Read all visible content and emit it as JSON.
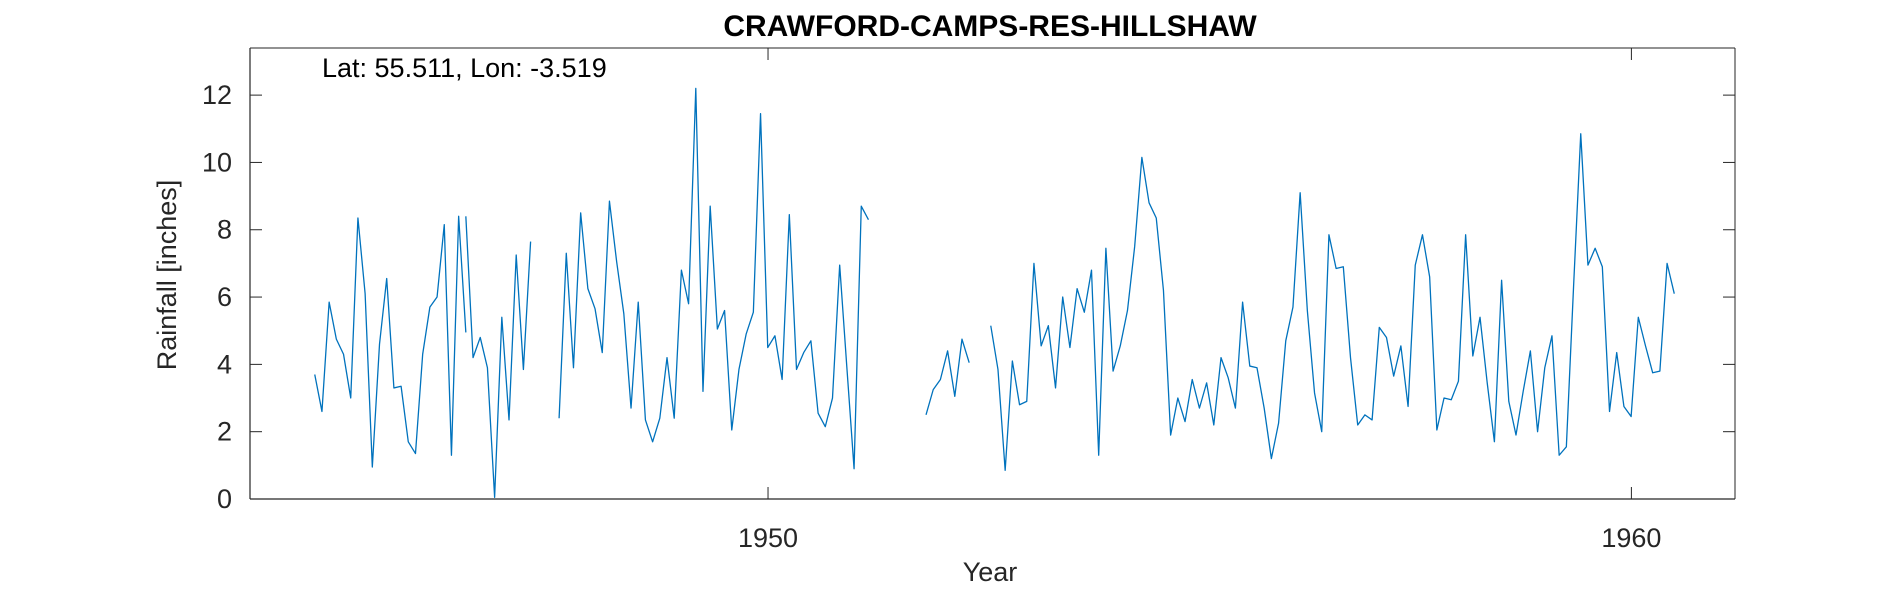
{
  "chart_data": {
    "type": "line",
    "title": "CRAWFORD-CAMPS-RES-HILLSHAW",
    "xlabel": "Year",
    "ylabel": "Rainfall [inches]",
    "annotation": "Lat: 55.511, Lon: -3.519",
    "xlim": [
      1944.0,
      1961.2
    ],
    "ylim": [
      0,
      13.4
    ],
    "xticks": [
      1950,
      1960
    ],
    "yticks": [
      0,
      2,
      4,
      6,
      8,
      10,
      12
    ],
    "grid": false,
    "line_color": "#0072BD",
    "series": [
      {
        "segments": [
          {
            "start_year": 1944.75,
            "values": [
              3.7,
              2.6,
              5.85,
              4.75,
              4.3,
              3.0,
              8.35,
              6.1,
              0.95,
              4.6,
              6.55,
              3.3,
              3.35,
              1.7,
              1.35,
              4.3,
              5.7,
              6.0,
              8.15,
              1.3,
              8.4,
              4.95
            ]
          },
          {
            "start_year": 1946.5,
            "values": [
              8.4,
              4.2,
              4.8,
              3.9,
              0.05,
              5.4,
              2.35,
              7.25,
              3.85,
              7.65
            ]
          },
          {
            "start_year": 1947.58,
            "values": [
              2.4,
              7.3,
              3.9,
              8.5,
              6.25,
              5.65,
              4.35,
              8.85,
              7.05,
              5.5,
              2.7,
              5.85,
              2.35,
              1.7,
              2.4,
              4.2,
              2.4,
              6.8,
              5.8,
              12.2,
              3.2,
              8.7,
              5.05,
              5.6,
              2.05,
              3.85,
              4.9,
              5.55,
              11.45,
              4.5,
              4.85,
              3.55,
              8.45,
              3.85,
              4.35,
              4.7,
              2.55,
              2.15,
              3.0,
              6.95,
              3.9,
              0.9,
              8.7,
              8.3
            ]
          },
          {
            "start_year": 1951.83,
            "values": [
              2.5,
              3.25,
              3.55,
              4.4,
              3.05,
              4.75,
              4.05
            ]
          },
          {
            "start_year": 1952.58,
            "values": [
              5.15,
              3.85,
              0.85,
              4.1,
              2.8,
              2.9,
              7.0,
              4.55,
              5.15,
              3.3,
              6.0,
              4.5,
              6.25,
              5.55,
              6.8,
              1.3,
              7.45,
              3.8,
              4.55,
              5.6,
              7.5,
              10.15,
              8.8,
              8.35,
              6.2,
              1.9,
              3.0,
              2.3,
              3.55,
              2.7,
              3.45,
              2.2,
              4.2,
              3.6,
              2.7,
              5.85,
              3.95,
              3.9,
              2.7,
              1.2,
              2.25,
              4.7,
              5.7,
              9.1,
              5.6,
              3.15,
              2.0,
              7.85,
              6.85,
              6.9,
              4.2,
              2.2,
              2.5,
              2.35,
              5.1,
              4.8,
              3.65,
              4.55,
              2.75,
              6.95,
              7.85,
              6.6,
              2.05,
              3.0,
              2.95,
              3.5,
              7.85,
              4.25,
              5.4,
              3.45,
              1.7,
              6.5,
              2.9,
              1.9,
              3.2,
              4.4,
              2.0,
              3.9,
              4.85,
              1.3,
              1.55,
              6.3,
              10.85,
              6.95,
              7.45,
              6.9,
              2.6,
              4.35,
              2.75,
              2.45,
              5.4,
              4.55,
              3.75,
              3.8,
              7.0,
              6.1
            ]
          }
        ]
      }
    ]
  }
}
